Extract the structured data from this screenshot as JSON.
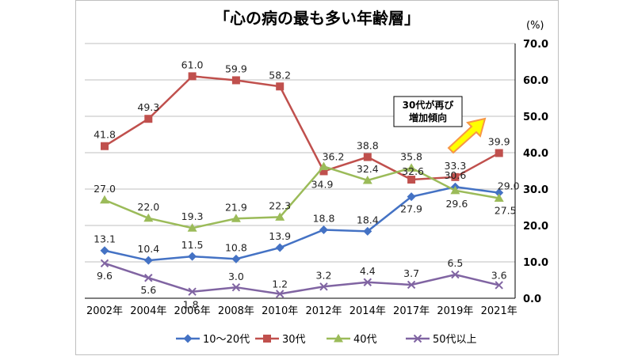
{
  "chart_data": {
    "type": "line",
    "title": "「心の病の最も多い年齢層」",
    "unit_label": "(%)",
    "categories": [
      "2002年",
      "2004年",
      "2006年",
      "2008年",
      "2010年",
      "2012年",
      "2014年",
      "2017年",
      "2019年",
      "2021年"
    ],
    "y_ticks": [
      "70.0",
      "60.0",
      "50.0",
      "40.0",
      "30.0",
      "20.0",
      "10.0",
      "0.0"
    ],
    "ylim": [
      0,
      70
    ],
    "y_axis_side": "right",
    "grid": true,
    "legend_position": "bottom",
    "series": [
      {
        "name": "10～20代",
        "color": "#4472C4",
        "marker": "diamond",
        "values": [
          13.1,
          10.4,
          11.5,
          10.8,
          13.9,
          18.8,
          18.4,
          27.9,
          30.6,
          29.0
        ],
        "labels": [
          "13.1",
          "10.4",
          "11.5",
          "10.8",
          "13.9",
          "18.8",
          "18.4",
          "27.9",
          "30.6",
          "29.0"
        ]
      },
      {
        "name": "30代",
        "color": "#C0504D",
        "marker": "square",
        "values": [
          41.8,
          49.3,
          61.0,
          59.9,
          58.2,
          34.9,
          38.8,
          32.6,
          33.3,
          39.9
        ],
        "labels": [
          "41.8",
          "49.3",
          "61.0",
          "59.9",
          "58.2",
          "34.9",
          "38.8",
          "32.6",
          "33.3",
          "39.9"
        ]
      },
      {
        "name": "40代",
        "color": "#9BBB59",
        "marker": "triangle",
        "values": [
          27.0,
          22.0,
          19.3,
          21.9,
          22.3,
          36.2,
          32.4,
          35.8,
          29.6,
          27.5
        ],
        "labels": [
          "27.0",
          "22.0",
          "19.3",
          "21.9",
          "22.3",
          "36.2",
          "32.4",
          "35.8",
          "29.6",
          "27.5"
        ]
      },
      {
        "name": "50代以上",
        "color": "#8064A2",
        "marker": "x",
        "values": [
          9.6,
          5.6,
          1.8,
          3.0,
          1.2,
          3.2,
          4.4,
          3.7,
          6.5,
          3.6
        ],
        "labels": [
          "9.6",
          "5.6",
          "1.8",
          "3.0",
          "1.2",
          "3.2",
          "4.4",
          "3.7",
          "6.5",
          "3.6"
        ]
      }
    ],
    "annotation": {
      "line1": "30代が再び",
      "line2": "増加傾向"
    }
  }
}
